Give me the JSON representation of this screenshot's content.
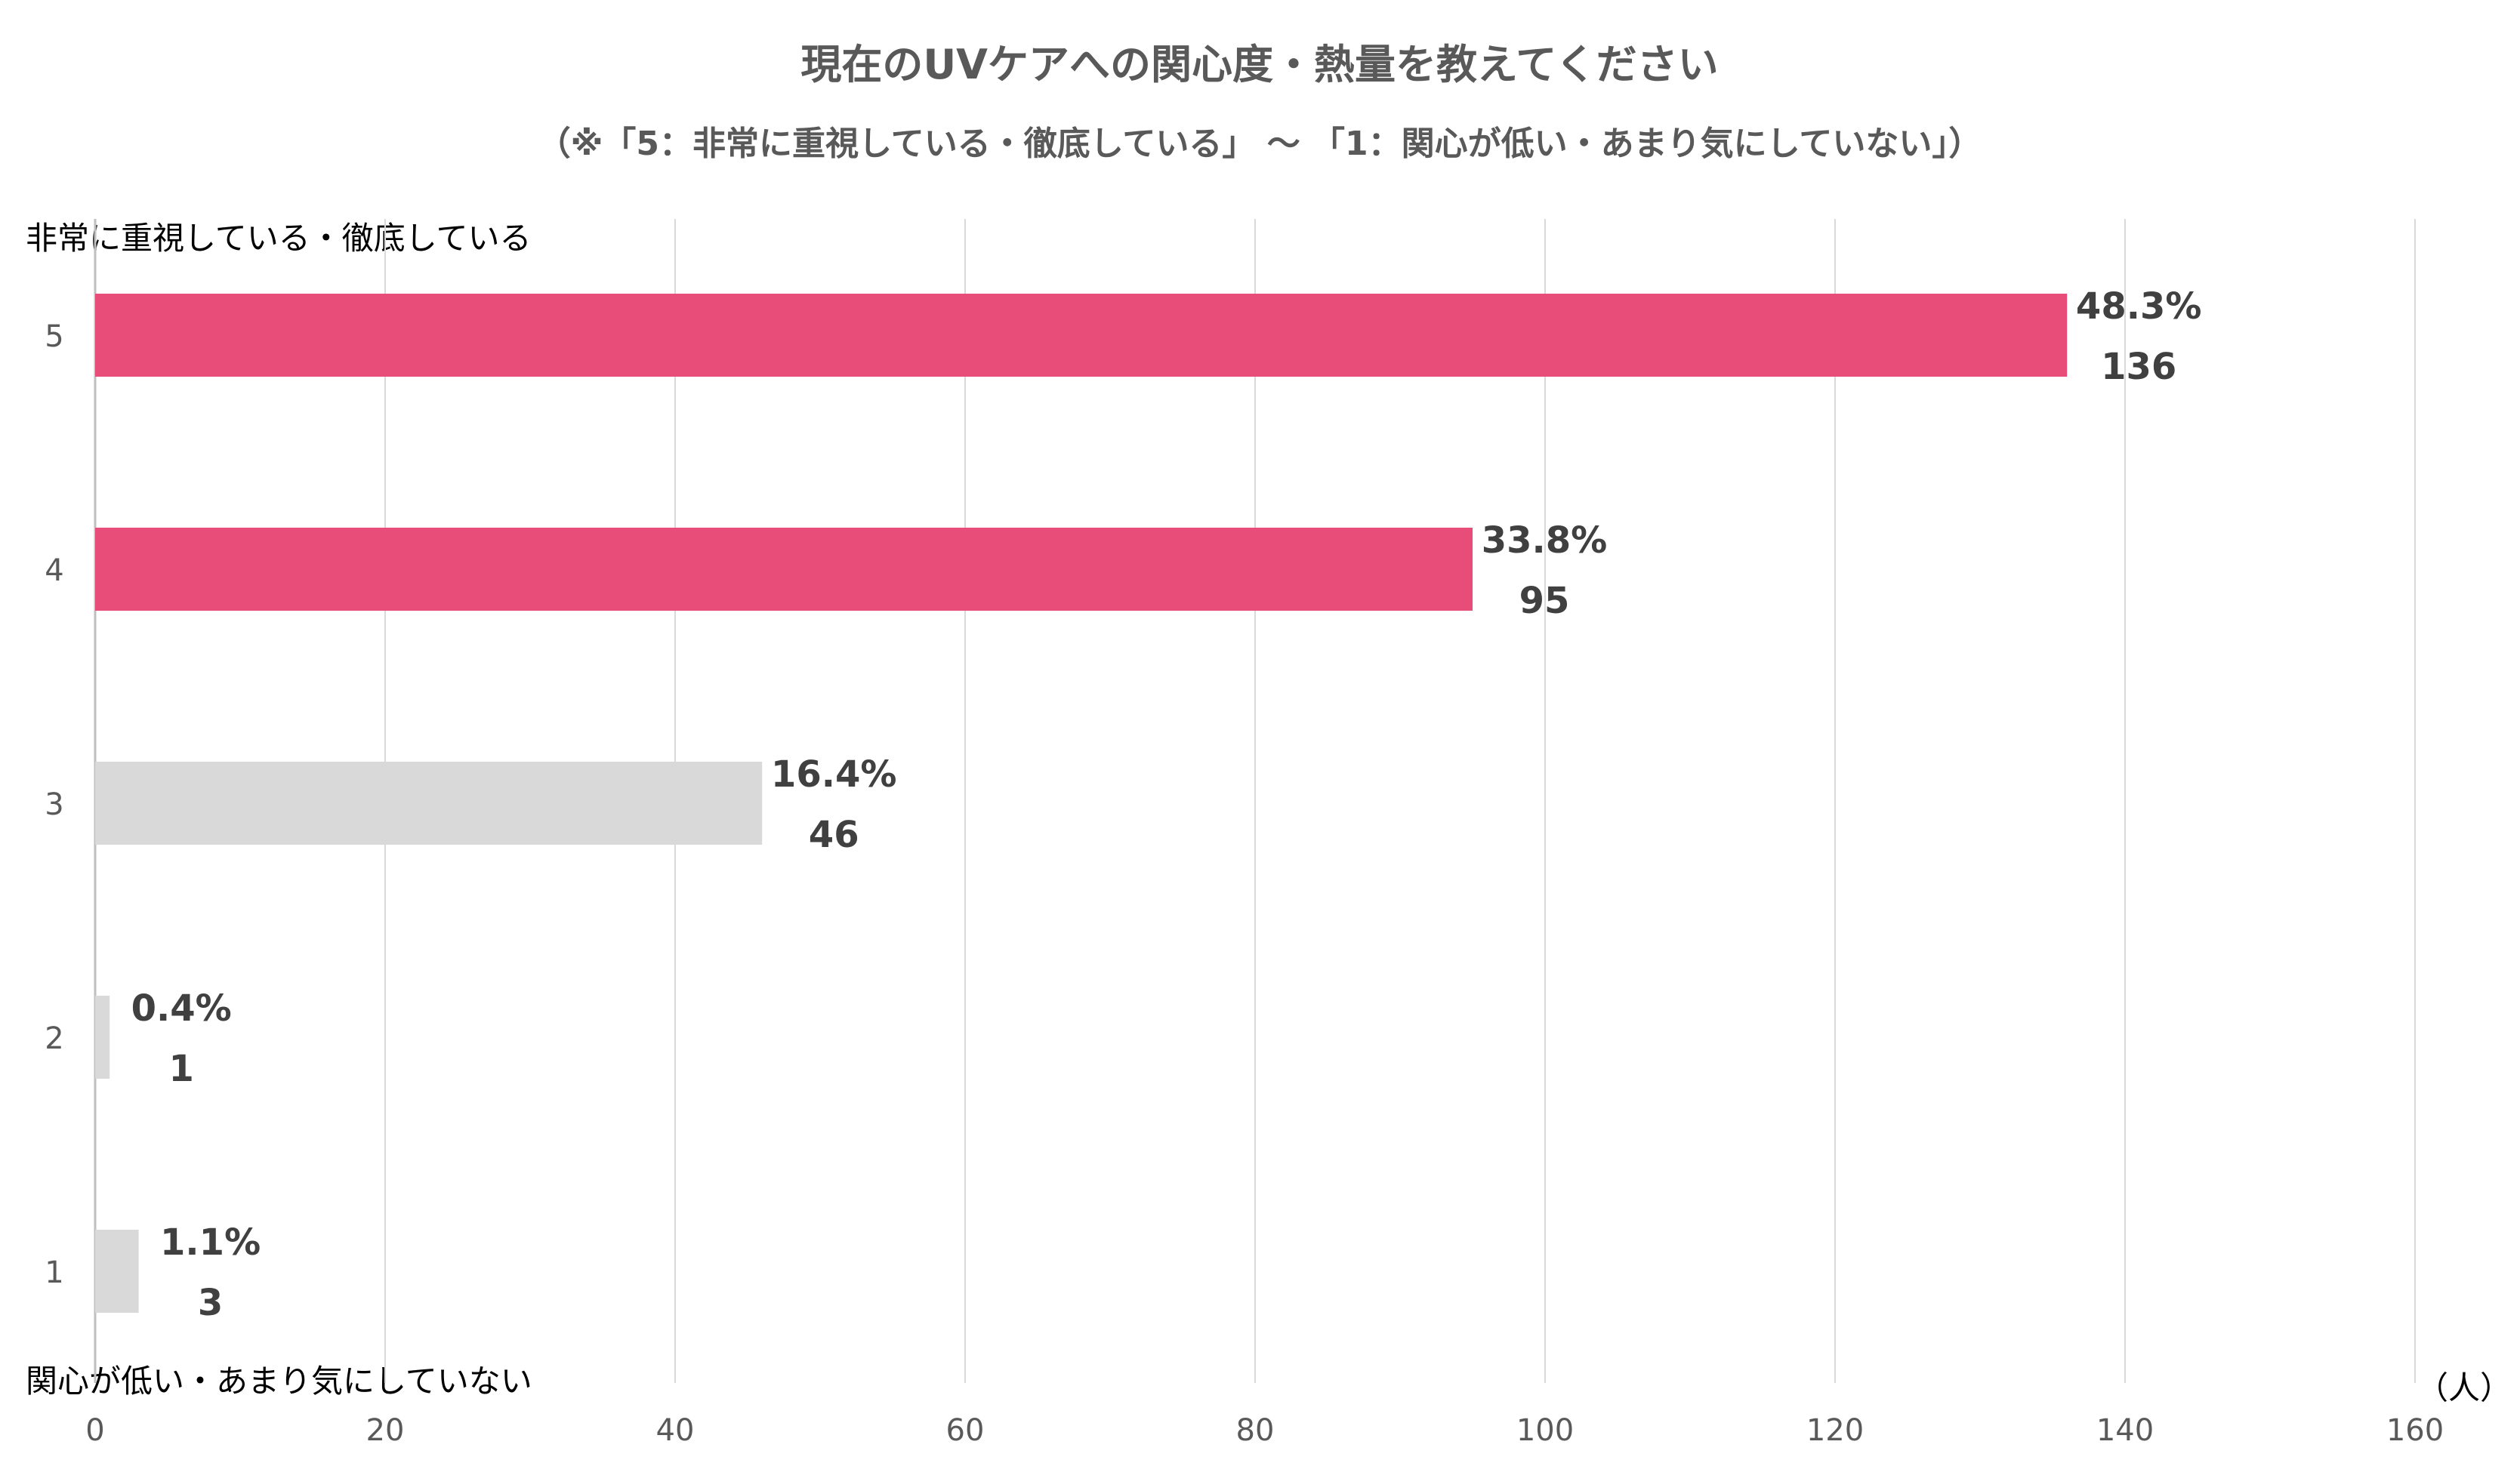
{
  "chart_data": {
    "type": "bar",
    "orientation": "horizontal",
    "title": "現在のUVケアへの関心度・熱量を教えてください",
    "subtitle": "（※「5：非常に重視している・徹底している」 〜 「1：関心が低い・あまり気にしていない」）",
    "top_label": "非常に重視している・徹底している",
    "bottom_label": "関心が低い・あまり気にしていない",
    "unit_label": "（人）",
    "categories": [
      "5",
      "4",
      "3",
      "2",
      "1"
    ],
    "values": [
      136,
      95,
      46,
      1,
      3
    ],
    "percent_labels": [
      "48.3%",
      "33.8%",
      "16.4%",
      "0.4%",
      "1.1%"
    ],
    "count_labels": [
      "136",
      "95",
      "46",
      "1",
      "3"
    ],
    "bar_colors": [
      "#E84C78",
      "#E84C78",
      "#D9D9D9",
      "#D9D9D9",
      "#D9D9D9"
    ],
    "xlim": [
      0,
      160
    ],
    "x_ticks": [
      0,
      20,
      40,
      60,
      80,
      100,
      120,
      140,
      160
    ],
    "x_tick_labels": [
      "0",
      "20",
      "40",
      "60",
      "80",
      "100",
      "120",
      "140",
      "160"
    ],
    "grid": true,
    "gridline_color": "#D9D9D9"
  }
}
